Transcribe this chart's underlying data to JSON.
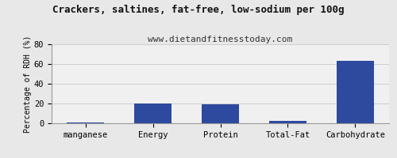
{
  "title": "Crackers, saltines, fat-free, low-sodium per 100g",
  "subtitle": "www.dietandfitnesstoday.com",
  "categories": [
    "manganese",
    "Energy",
    "Protein",
    "Total-Fat",
    "Carbohydrate"
  ],
  "values": [
    0.5,
    20.0,
    19.5,
    2.5,
    63.0
  ],
  "bar_color": "#2e4a9e",
  "ylabel": "Percentage of RDH (%)",
  "ylim": [
    0,
    80
  ],
  "yticks": [
    0,
    20,
    40,
    60,
    80
  ],
  "background_color": "#e8e8e8",
  "plot_bg_color": "#f0f0f0",
  "title_fontsize": 9,
  "subtitle_fontsize": 8,
  "ylabel_fontsize": 7,
  "tick_fontsize": 7.5
}
